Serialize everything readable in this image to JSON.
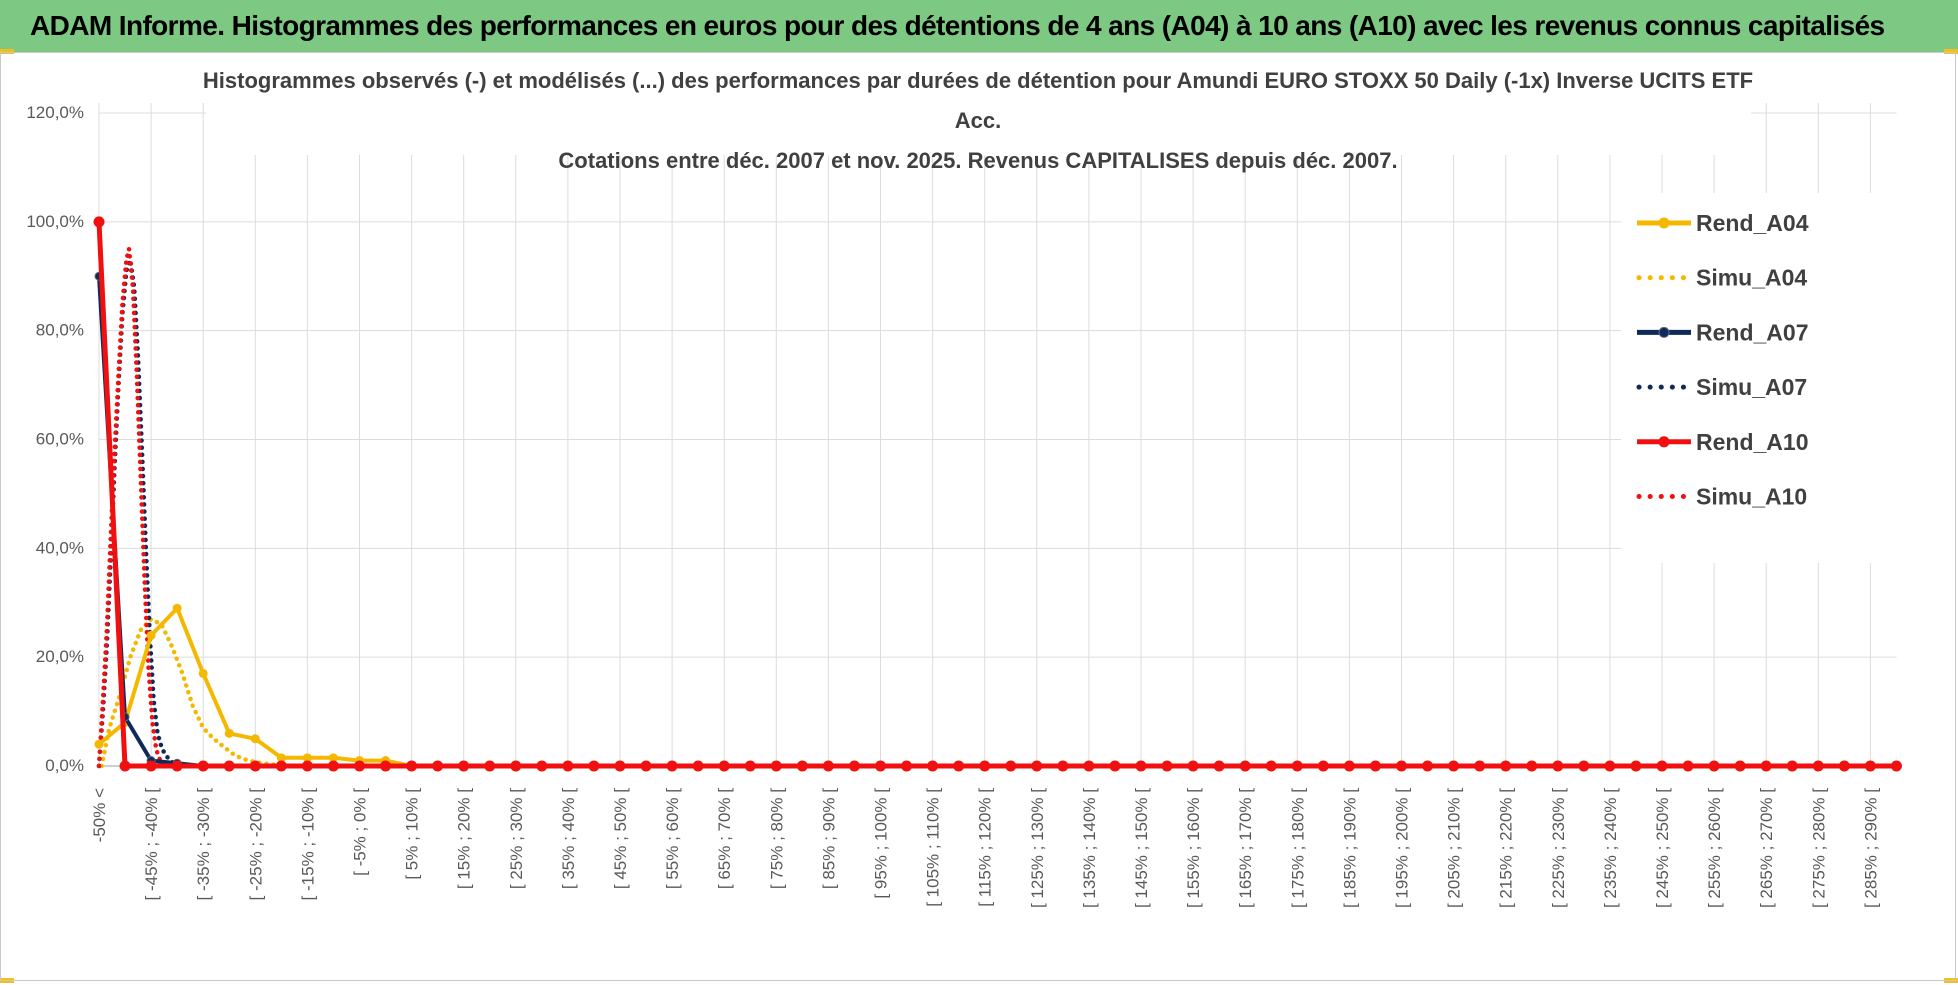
{
  "header": {
    "banner_title": "ADAM Informe. Histogrammes des performances en euros pour des détentions de 4 ans (A04) à 10 ans (A10) avec les revenus connus capitalisés"
  },
  "colors": {
    "banner_bg": "#7dc882",
    "A04": "#f5b800",
    "A07": "#0f2a5a",
    "A10": "#f01010"
  },
  "chart_data": {
    "type": "line",
    "title": [
      "Histogrammes observés (-) et modélisés (...) des performances par durées de détention pour Amundi EURO STOXX 50 Daily (-1x) Inverse UCITS ETF",
      "Acc.",
      "Cotations entre déc. 2007 et nov. 2025. Revenus CAPITALISES depuis déc. 2007."
    ],
    "ylim": [
      0,
      1.2
    ],
    "y_ticks": [
      "0,0%",
      "20,0%",
      "40,0%",
      "60,0%",
      "80,0%",
      "100,0%",
      "120,0%"
    ],
    "grid": true,
    "legend_position": "right",
    "x_labels": [
      "-50% <",
      "[ -45% ; -40% [",
      "[ -35% ; -30% [",
      "[ -25% ; -20% [",
      "[ -15% ; -10% [",
      "[ -5% ; 0% [",
      "[ 5% ; 10% [",
      "[ 15% ; 20% [",
      "[ 25% ; 30% [",
      "[ 35% ; 40% [",
      "[ 45% ; 50% [",
      "[ 55% ; 60% [",
      "[ 65% ; 70% [",
      "[ 75% ; 80% [",
      "[ 85% ; 90% [",
      "[ 95% ; 100% [",
      "[ 105% ; 110% [",
      "[ 115% ; 120% [",
      "[ 125% ; 130% [",
      "[ 135% ; 140% [",
      "[ 145% ; 150% [",
      "[ 155% ; 160% [",
      "[ 165% ; 170% [",
      "[ 175% ; 180% [",
      "[ 185% ; 190% [",
      "[ 195% ; 200% [",
      "[ 205% ; 210% [",
      "[ 215% ; 220% [",
      "[ 225% ; 230% [",
      "[ 235% ; 240% [",
      "[ 245% ; 250% [",
      "[ 255% ; 260% [",
      "[ 265% ; 270% [",
      "[ 275% ; 280% [",
      "[ 285% ; 290% ["
    ],
    "observed": [
      {
        "name": "Rend_A04",
        "values": [
          0.04,
          0.08,
          0.24,
          0.29,
          0.17,
          0.06,
          0.05,
          0.015,
          0.015,
          0.015,
          0.01,
          0.01
        ]
      },
      {
        "name": "Rend_A07",
        "values": [
          0.9,
          0.09,
          0.01,
          0.005
        ]
      },
      {
        "name": "Rend_A10",
        "values": [
          1.0,
          0.0
        ]
      }
    ],
    "simulated": [
      {
        "name": "Simu_A04",
        "points": [
          [
            0.1,
            0.0
          ],
          [
            0.4,
            0.07
          ],
          [
            0.8,
            0.13
          ],
          [
            1.2,
            0.2
          ],
          [
            1.6,
            0.25
          ],
          [
            2.0,
            0.27
          ],
          [
            2.4,
            0.26
          ],
          [
            2.8,
            0.22
          ],
          [
            3.2,
            0.17
          ],
          [
            3.6,
            0.11
          ],
          [
            4.0,
            0.07
          ],
          [
            4.4,
            0.05
          ],
          [
            4.8,
            0.035
          ],
          [
            5.2,
            0.02
          ],
          [
            5.6,
            0.012
          ],
          [
            6.0,
            0.007
          ],
          [
            6.6,
            0.003
          ],
          [
            7.2,
            0.0
          ]
        ]
      },
      {
        "name": "Simu_A07",
        "points": [
          [
            0.0,
            0.0
          ],
          [
            0.15,
            0.1
          ],
          [
            0.3,
            0.22
          ],
          [
            0.45,
            0.38
          ],
          [
            0.6,
            0.55
          ],
          [
            0.75,
            0.7
          ],
          [
            0.9,
            0.83
          ],
          [
            1.05,
            0.91
          ],
          [
            1.2,
            0.93
          ],
          [
            1.35,
            0.88
          ],
          [
            1.5,
            0.75
          ],
          [
            1.65,
            0.58
          ],
          [
            1.8,
            0.4
          ],
          [
            1.95,
            0.24
          ],
          [
            2.1,
            0.12
          ],
          [
            2.25,
            0.06
          ],
          [
            2.4,
            0.035
          ],
          [
            2.55,
            0.02
          ],
          [
            2.75,
            0.01
          ],
          [
            3.0,
            0.0
          ]
        ]
      },
      {
        "name": "Simu_A10",
        "points": [
          [
            0.0,
            0.0
          ],
          [
            0.15,
            0.12
          ],
          [
            0.3,
            0.25
          ],
          [
            0.45,
            0.42
          ],
          [
            0.6,
            0.58
          ],
          [
            0.75,
            0.72
          ],
          [
            0.9,
            0.85
          ],
          [
            1.05,
            0.93
          ],
          [
            1.15,
            0.95
          ],
          [
            1.3,
            0.88
          ],
          [
            1.45,
            0.72
          ],
          [
            1.6,
            0.53
          ],
          [
            1.75,
            0.34
          ],
          [
            1.9,
            0.18
          ],
          [
            2.05,
            0.08
          ],
          [
            2.2,
            0.03
          ],
          [
            2.35,
            0.01
          ],
          [
            2.5,
            0.0
          ]
        ]
      }
    ],
    "legend": [
      "Rend_A04",
      "Simu_A04",
      "Rend_A07",
      "Simu_A07",
      "Rend_A10",
      "Simu_A10"
    ]
  }
}
